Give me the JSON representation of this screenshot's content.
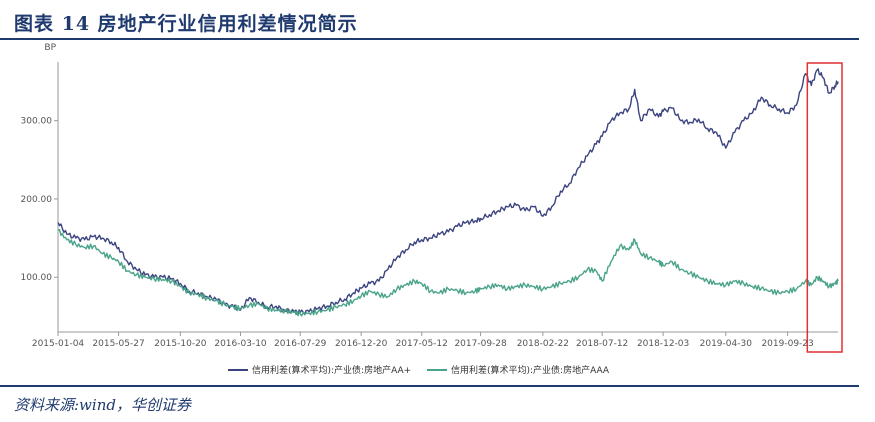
{
  "figure": {
    "title": "图表 14    房地产行业信用利差情况简示",
    "source": "资料来源:wind，华创证券"
  },
  "chart_data": {
    "type": "line",
    "title": "",
    "xlabel": "",
    "ylabel": "BP",
    "ylim": [
      30,
      375
    ],
    "x_ticks": [
      "2015-01-04",
      "2015-05-27",
      "2015-10-20",
      "2016-03-10",
      "2016-07-29",
      "2016-12-20",
      "2017-05-12",
      "2017-09-28",
      "2018-02-22",
      "2018-07-12",
      "2018-12-03",
      "2019-04-30",
      "2019-09-23"
    ],
    "y_ticks": [
      {
        "value": 100,
        "label": "100.00"
      },
      {
        "value": 200,
        "label": "200.00"
      },
      {
        "value": 300,
        "label": "300.00"
      }
    ],
    "grid": false,
    "legend_position": "bottom-center",
    "x_range": [
      "2015-01-04",
      "2020-01-20"
    ],
    "highlight_range": [
      "2019-11-18",
      "2020-01-20"
    ],
    "highlight_color": "#e03030",
    "series": [
      {
        "name": "信用利差(算术平均):产业债:房地产AA+",
        "color": "#3c4480",
        "points": [
          [
            "2015-01-04",
            170
          ],
          [
            "2015-01-25",
            155
          ],
          [
            "2015-02-15",
            150
          ],
          [
            "2015-03-08",
            148
          ],
          [
            "2015-03-29",
            152
          ],
          [
            "2015-04-19",
            150
          ],
          [
            "2015-05-10",
            145
          ],
          [
            "2015-05-27",
            138
          ],
          [
            "2015-06-17",
            120
          ],
          [
            "2015-07-08",
            110
          ],
          [
            "2015-07-29",
            103
          ],
          [
            "2015-08-19",
            100
          ],
          [
            "2015-09-09",
            100
          ],
          [
            "2015-09-30",
            98
          ],
          [
            "2015-10-20",
            92
          ],
          [
            "2015-11-10",
            82
          ],
          [
            "2015-12-01",
            80
          ],
          [
            "2015-12-22",
            75
          ],
          [
            "2016-01-12",
            72
          ],
          [
            "2016-02-02",
            65
          ],
          [
            "2016-02-23",
            62
          ],
          [
            "2016-03-10",
            58
          ],
          [
            "2016-03-31",
            74
          ],
          [
            "2016-04-21",
            68
          ],
          [
            "2016-05-12",
            62
          ],
          [
            "2016-06-02",
            63
          ],
          [
            "2016-06-23",
            57
          ],
          [
            "2016-07-14",
            56
          ],
          [
            "2016-07-29",
            55
          ],
          [
            "2016-08-19",
            56
          ],
          [
            "2016-09-09",
            60
          ],
          [
            "2016-09-30",
            63
          ],
          [
            "2016-10-21",
            68
          ],
          [
            "2016-11-11",
            72
          ],
          [
            "2016-12-02",
            80
          ],
          [
            "2016-12-20",
            86
          ],
          [
            "2017-01-10",
            92
          ],
          [
            "2017-01-31",
            95
          ],
          [
            "2017-02-21",
            110
          ],
          [
            "2017-03-14",
            125
          ],
          [
            "2017-04-04",
            135
          ],
          [
            "2017-04-25",
            145
          ],
          [
            "2017-05-12",
            148
          ],
          [
            "2017-06-02",
            150
          ],
          [
            "2017-06-23",
            155
          ],
          [
            "2017-07-14",
            158
          ],
          [
            "2017-08-04",
            165
          ],
          [
            "2017-08-25",
            170
          ],
          [
            "2017-09-15",
            172
          ],
          [
            "2017-09-28",
            175
          ],
          [
            "2017-10-19",
            180
          ],
          [
            "2017-11-09",
            185
          ],
          [
            "2017-11-30",
            190
          ],
          [
            "2017-12-21",
            192
          ],
          [
            "2018-01-11",
            185
          ],
          [
            "2018-02-01",
            190
          ],
          [
            "2018-02-22",
            178
          ],
          [
            "2018-03-15",
            190
          ],
          [
            "2018-04-05",
            210
          ],
          [
            "2018-04-26",
            220
          ],
          [
            "2018-05-17",
            240
          ],
          [
            "2018-06-07",
            255
          ],
          [
            "2018-06-28",
            270
          ],
          [
            "2018-07-12",
            280
          ],
          [
            "2018-08-02",
            300
          ],
          [
            "2018-08-23",
            310
          ],
          [
            "2018-09-13",
            315
          ],
          [
            "2018-09-27",
            340
          ],
          [
            "2018-10-11",
            300
          ],
          [
            "2018-11-01",
            315
          ],
          [
            "2018-11-22",
            305
          ],
          [
            "2018-12-03",
            312
          ],
          [
            "2018-12-24",
            316
          ],
          [
            "2019-01-14",
            300
          ],
          [
            "2019-02-04",
            298
          ],
          [
            "2019-02-25",
            302
          ],
          [
            "2019-03-18",
            290
          ],
          [
            "2019-04-08",
            285
          ],
          [
            "2019-04-30",
            265
          ],
          [
            "2019-05-21",
            285
          ],
          [
            "2019-06-11",
            300
          ],
          [
            "2019-07-02",
            310
          ],
          [
            "2019-07-23",
            330
          ],
          [
            "2019-08-13",
            320
          ],
          [
            "2019-09-03",
            315
          ],
          [
            "2019-09-23",
            310
          ],
          [
            "2019-10-14",
            320
          ],
          [
            "2019-11-04",
            360
          ],
          [
            "2019-11-18",
            345
          ],
          [
            "2019-12-02",
            365
          ],
          [
            "2019-12-16",
            355
          ],
          [
            "2019-12-30",
            335
          ],
          [
            "2020-01-13",
            345
          ],
          [
            "2020-01-20",
            350
          ]
        ]
      },
      {
        "name": "信用利差(算术平均):产业债:房地产AAA",
        "color": "#4aa38a",
        "points": [
          [
            "2015-01-04",
            160
          ],
          [
            "2015-01-25",
            148
          ],
          [
            "2015-02-15",
            142
          ],
          [
            "2015-03-08",
            138
          ],
          [
            "2015-03-29",
            140
          ],
          [
            "2015-04-19",
            130
          ],
          [
            "2015-05-10",
            125
          ],
          [
            "2015-05-27",
            120
          ],
          [
            "2015-06-17",
            108
          ],
          [
            "2015-07-08",
            103
          ],
          [
            "2015-07-29",
            100
          ],
          [
            "2015-08-19",
            98
          ],
          [
            "2015-09-09",
            97
          ],
          [
            "2015-09-30",
            95
          ],
          [
            "2015-10-20",
            88
          ],
          [
            "2015-11-10",
            80
          ],
          [
            "2015-12-01",
            78
          ],
          [
            "2015-12-22",
            73
          ],
          [
            "2016-01-12",
            70
          ],
          [
            "2016-02-02",
            65
          ],
          [
            "2016-02-23",
            62
          ],
          [
            "2016-03-10",
            60
          ],
          [
            "2016-03-31",
            64
          ],
          [
            "2016-04-21",
            66
          ],
          [
            "2016-05-12",
            60
          ],
          [
            "2016-06-02",
            58
          ],
          [
            "2016-06-23",
            57
          ],
          [
            "2016-07-14",
            55
          ],
          [
            "2016-07-29",
            53
          ],
          [
            "2016-08-19",
            54
          ],
          [
            "2016-09-09",
            56
          ],
          [
            "2016-09-30",
            58
          ],
          [
            "2016-10-21",
            62
          ],
          [
            "2016-11-11",
            65
          ],
          [
            "2016-12-02",
            70
          ],
          [
            "2016-12-20",
            76
          ],
          [
            "2017-01-10",
            82
          ],
          [
            "2017-01-31",
            78
          ],
          [
            "2017-02-21",
            75
          ],
          [
            "2017-03-14",
            85
          ],
          [
            "2017-04-04",
            90
          ],
          [
            "2017-04-25",
            95
          ],
          [
            "2017-05-12",
            92
          ],
          [
            "2017-06-02",
            82
          ],
          [
            "2017-06-23",
            80
          ],
          [
            "2017-07-14",
            85
          ],
          [
            "2017-08-04",
            83
          ],
          [
            "2017-08-25",
            80
          ],
          [
            "2017-09-15",
            82
          ],
          [
            "2017-09-28",
            85
          ],
          [
            "2017-10-19",
            88
          ],
          [
            "2017-11-09",
            90
          ],
          [
            "2017-11-30",
            85
          ],
          [
            "2017-12-21",
            88
          ],
          [
            "2018-01-11",
            90
          ],
          [
            "2018-02-01",
            88
          ],
          [
            "2018-02-22",
            85
          ],
          [
            "2018-03-15",
            88
          ],
          [
            "2018-04-05",
            92
          ],
          [
            "2018-04-26",
            95
          ],
          [
            "2018-05-17",
            100
          ],
          [
            "2018-06-07",
            110
          ],
          [
            "2018-06-28",
            108
          ],
          [
            "2018-07-12",
            95
          ],
          [
            "2018-08-02",
            120
          ],
          [
            "2018-08-23",
            140
          ],
          [
            "2018-09-13",
            135
          ],
          [
            "2018-09-27",
            148
          ],
          [
            "2018-10-11",
            130
          ],
          [
            "2018-11-01",
            125
          ],
          [
            "2018-11-22",
            120
          ],
          [
            "2018-12-03",
            115
          ],
          [
            "2018-12-24",
            120
          ],
          [
            "2019-01-14",
            110
          ],
          [
            "2019-02-04",
            105
          ],
          [
            "2019-02-25",
            100
          ],
          [
            "2019-03-18",
            95
          ],
          [
            "2019-04-08",
            92
          ],
          [
            "2019-04-30",
            90
          ],
          [
            "2019-05-21",
            95
          ],
          [
            "2019-06-11",
            92
          ],
          [
            "2019-07-02",
            88
          ],
          [
            "2019-07-23",
            86
          ],
          [
            "2019-08-13",
            82
          ],
          [
            "2019-09-03",
            80
          ],
          [
            "2019-09-23",
            82
          ],
          [
            "2019-10-14",
            85
          ],
          [
            "2019-11-04",
            95
          ],
          [
            "2019-11-18",
            90
          ],
          [
            "2019-12-02",
            100
          ],
          [
            "2019-12-16",
            95
          ],
          [
            "2019-12-30",
            88
          ],
          [
            "2020-01-13",
            92
          ],
          [
            "2020-01-20",
            95
          ]
        ]
      }
    ]
  }
}
